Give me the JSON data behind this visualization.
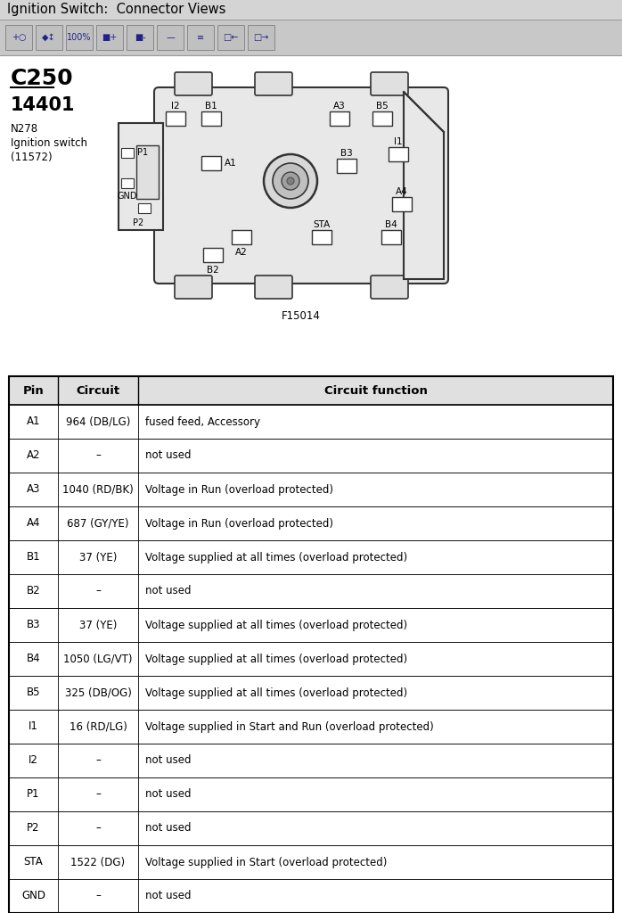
{
  "title": "Ignition Switch:  Connector Views",
  "bg_color": "#d4d4d4",
  "toolbar_bg": "#c8c8c8",
  "content_bg": "#f5f5f5",
  "c250_label": "C250",
  "part_number": "14401",
  "component_info": [
    "N278",
    "Ignition switch",
    "(11572)"
  ],
  "figure_label": "F15014",
  "table_headers": [
    "Pin",
    "Circuit",
    "Circuit function"
  ],
  "table_data": [
    [
      "A1",
      "964 (DB/LG)",
      "fused feed, Accessory"
    ],
    [
      "A2",
      "–",
      "not used"
    ],
    [
      "A3",
      "1040 (RD/BK)",
      "Voltage in Run (overload protected)"
    ],
    [
      "A4",
      "687 (GY/YE)",
      "Voltage in Run (overload protected)"
    ],
    [
      "B1",
      "37 (YE)",
      "Voltage supplied at all times (overload protected)"
    ],
    [
      "B2",
      "–",
      "not used"
    ],
    [
      "B3",
      "37 (YE)",
      "Voltage supplied at all times (overload protected)"
    ],
    [
      "B4",
      "1050 (LG/VT)",
      "Voltage supplied at all times (overload protected)"
    ],
    [
      "B5",
      "325 (DB/OG)",
      "Voltage supplied at all times (overload protected)"
    ],
    [
      "I1",
      "16 (RD/LG)",
      "Voltage supplied in Start and Run (overload protected)"
    ],
    [
      "I2",
      "–",
      "not used"
    ],
    [
      "P1",
      "–",
      "not used"
    ],
    [
      "P2",
      "–",
      "not used"
    ],
    [
      "STA",
      "1522 (DG)",
      "Voltage supplied in Start (overload protected)"
    ],
    [
      "GND",
      "–",
      "not used"
    ]
  ]
}
